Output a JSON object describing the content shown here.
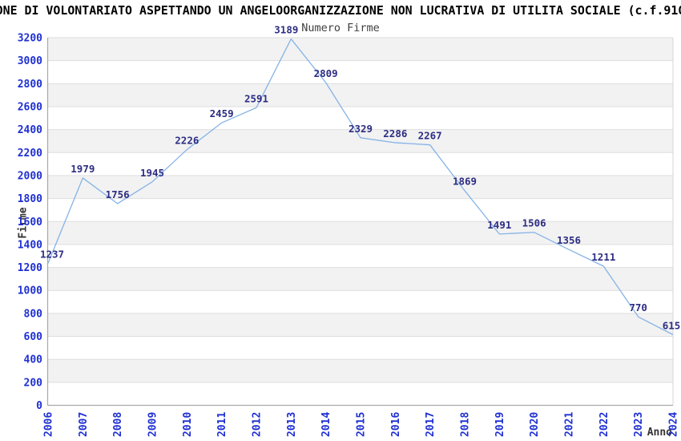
{
  "page_title": "ONE DI VOLONTARIATO ASPETTANDO UN ANGELOORGANIZZAZIONE NON LUCRATIVA DI UTILITA SOCIALE (c.f.910",
  "chart_data": {
    "type": "line",
    "title": "Numero Firme",
    "xlabel": "Anno",
    "ylabel": "Firme",
    "categories": [
      "2006",
      "2007",
      "2008",
      "2009",
      "2010",
      "2011",
      "2012",
      "2013",
      "2014",
      "2015",
      "2016",
      "2017",
      "2018",
      "2019",
      "2020",
      "2021",
      "2022",
      "2023",
      "2024"
    ],
    "values": [
      1237,
      1979,
      1756,
      1945,
      2226,
      2459,
      2591,
      3189,
      2809,
      2329,
      2286,
      2267,
      1869,
      1491,
      1506,
      1356,
      1211,
      770,
      615
    ],
    "ylim": [
      0,
      3200
    ],
    "ytick_step": 200,
    "grid": "horizontal-alternating-bands",
    "legend_position": "none",
    "colors": {
      "line": "#85b3e6",
      "data_label": "#2d2d84",
      "tick_label": "#1f30d2",
      "axis_text": "#333333",
      "chart_title": "#404040",
      "main_title": "#000000",
      "band": "#f2f2f2",
      "gridline": "#dedede",
      "axis_line": "#a8a8a8",
      "plot_border": "#d6d6d6",
      "background": "#ffffff"
    }
  }
}
